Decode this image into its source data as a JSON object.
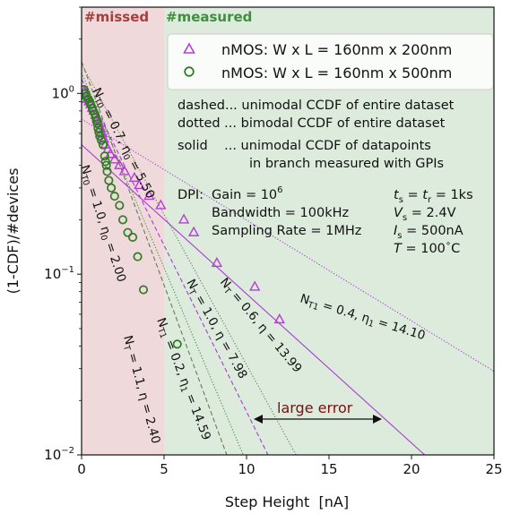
{
  "chart_data": {
    "type": "scatter",
    "xlabel": "Step Height  [nA]",
    "ylabel": "(1-CDF)/#devices",
    "xlim": [
      0,
      25
    ],
    "ylim": [
      0.01,
      3
    ],
    "yscale": "log",
    "grid": false,
    "x_ticks": [
      "0",
      "5",
      "10",
      "15",
      "20",
      "25"
    ],
    "y_ticks": [
      {
        "value": 1,
        "base": "10",
        "exp": "0"
      },
      {
        "value": 0.1,
        "base": "10",
        "exp": "−1"
      },
      {
        "value": 0.01,
        "base": "10",
        "exp": "−2"
      }
    ],
    "regions": [
      {
        "label": "#missed",
        "x_from": 0,
        "x_to": 5,
        "color": "#efd9da",
        "label_color": "#a3403f"
      },
      {
        "label": "#measured",
        "x_from": 5,
        "x_to": 25,
        "color": "#dcebdc",
        "label_color": "#3f8f3f"
      }
    ],
    "legend": {
      "position": "top-right",
      "entries": [
        {
          "label": "nMOS: W x L = 160nm x 200nm",
          "marker": "triangle",
          "color": "#b43fd4"
        },
        {
          "label": "nMOS: W x L = 160nm x 500nm",
          "marker": "circle",
          "color": "#2f7d22"
        }
      ]
    },
    "series": [
      {
        "name": "nMOS: W x L = 160nm x 200nm",
        "marker": "triangle",
        "color": "#b43fd4",
        "points": [
          [
            0.15,
            1.02
          ],
          [
            0.25,
            0.97
          ],
          [
            0.35,
            0.93
          ],
          [
            0.45,
            0.9
          ],
          [
            0.55,
            0.87
          ],
          [
            0.65,
            0.83
          ],
          [
            0.75,
            0.8
          ],
          [
            0.85,
            0.76
          ],
          [
            0.95,
            0.72
          ],
          [
            1.05,
            0.68
          ],
          [
            1.15,
            0.64
          ],
          [
            1.25,
            0.6
          ],
          [
            1.35,
            0.56
          ],
          [
            1.45,
            0.52
          ],
          [
            1.6,
            0.49
          ],
          [
            1.75,
            0.46
          ],
          [
            2.0,
            0.43
          ],
          [
            2.3,
            0.4
          ],
          [
            2.6,
            0.37
          ],
          [
            3.2,
            0.34
          ],
          [
            3.5,
            0.31
          ],
          [
            4.1,
            0.27
          ],
          [
            4.8,
            0.24
          ],
          [
            6.2,
            0.2
          ],
          [
            6.8,
            0.17
          ],
          [
            8.2,
            0.115
          ],
          [
            10.5,
            0.085
          ],
          [
            12.0,
            0.056
          ]
        ]
      },
      {
        "name": "nMOS: W x L = 160nm x 500nm",
        "marker": "circle",
        "color": "#2f7d22",
        "points": [
          [
            0.15,
            1.05
          ],
          [
            0.25,
            1.0
          ],
          [
            0.3,
            0.96
          ],
          [
            0.4,
            0.93
          ],
          [
            0.5,
            0.9
          ],
          [
            0.55,
            0.87
          ],
          [
            0.65,
            0.83
          ],
          [
            0.7,
            0.8
          ],
          [
            0.8,
            0.77
          ],
          [
            0.85,
            0.74
          ],
          [
            0.9,
            0.71
          ],
          [
            0.95,
            0.68
          ],
          [
            1.0,
            0.64
          ],
          [
            1.05,
            0.61
          ],
          [
            1.1,
            0.58
          ],
          [
            1.2,
            0.55
          ],
          [
            1.3,
            0.52
          ],
          [
            1.4,
            0.45
          ],
          [
            1.45,
            0.42
          ],
          [
            1.5,
            0.4
          ],
          [
            1.55,
            0.37
          ],
          [
            1.65,
            0.33
          ],
          [
            1.8,
            0.3
          ],
          [
            2.0,
            0.27
          ],
          [
            2.3,
            0.24
          ],
          [
            2.5,
            0.2
          ],
          [
            2.8,
            0.17
          ],
          [
            3.1,
            0.16
          ],
          [
            3.4,
            0.125
          ],
          [
            3.75,
            0.082
          ],
          [
            5.8,
            0.041
          ]
        ]
      }
    ],
    "fit_lines": [
      {
        "style": "dashed",
        "color": "#5f7f55",
        "from": [
          0,
          1.5
        ],
        "to": [
          8.8,
          0.01
        ]
      },
      {
        "style": "dotted",
        "color": "#3f8f3f",
        "from": [
          0,
          1.3
        ],
        "to": [
          9.8,
          0.01
        ]
      },
      {
        "style": "dotted",
        "color": "#6d7a5a",
        "from": [
          0,
          1.45
        ],
        "to": [
          13.0,
          0.01
        ]
      },
      {
        "style": "dashed",
        "color": "#a93dd3",
        "from": [
          0,
          1.2
        ],
        "to": [
          11.3,
          0.01
        ]
      },
      {
        "style": "solid",
        "color": "#a93dd3",
        "from": [
          0,
          0.52
        ],
        "to": [
          20.8,
          0.01
        ]
      },
      {
        "style": "dotted",
        "color": "#a93dd3",
        "from": [
          0,
          0.72
        ],
        "to": [
          25,
          0.029
        ]
      }
    ],
    "annotations": {
      "model_notes": [
        "dashed... unimodal CCDF of entire dataset",
        "dotted ... bimodal CCDF of entire dataset",
        "solid    ... unimodal CCDF of datapoints",
        "in branch measured with GPIs"
      ],
      "dpi_label": "DPI:",
      "dpi_gain": "Gain = 10",
      "dpi_gain_exp": "6",
      "dpi_bandwidth": "Bandwidth = 100kHz",
      "dpi_sampling": "Sampling Rate = 1MHz",
      "cond_ts": "t",
      "cond_ts_sub": "s",
      "cond_ts_rest": " = t",
      "cond_tr_sub": "r",
      "cond_ts_val": " = 1ks",
      "cond_vs": "V",
      "cond_vs_sub": "s",
      "cond_vs_val": " = 2.4V",
      "cond_is": "I",
      "cond_is_sub": "s",
      "cond_is_val": " = 500nA",
      "cond_t": "T",
      "cond_t_val": " = 100",
      "cond_t_unit": "C",
      "large_error": "large error",
      "fit_labels": [
        "N_T0 = 0.7, η_0 = 5.50",
        "N_T0 = 1.0, η_0 = 2.00",
        "N_T = 1.1, η = 2.40",
        "N_T1 = 0.2, η_1 = 14.59",
        "N_T = 1.0, η = 7.98",
        "N_T = 0.6, η = 13.99",
        "N_T1 = 0.4, η_1 = 14.10"
      ]
    }
  }
}
